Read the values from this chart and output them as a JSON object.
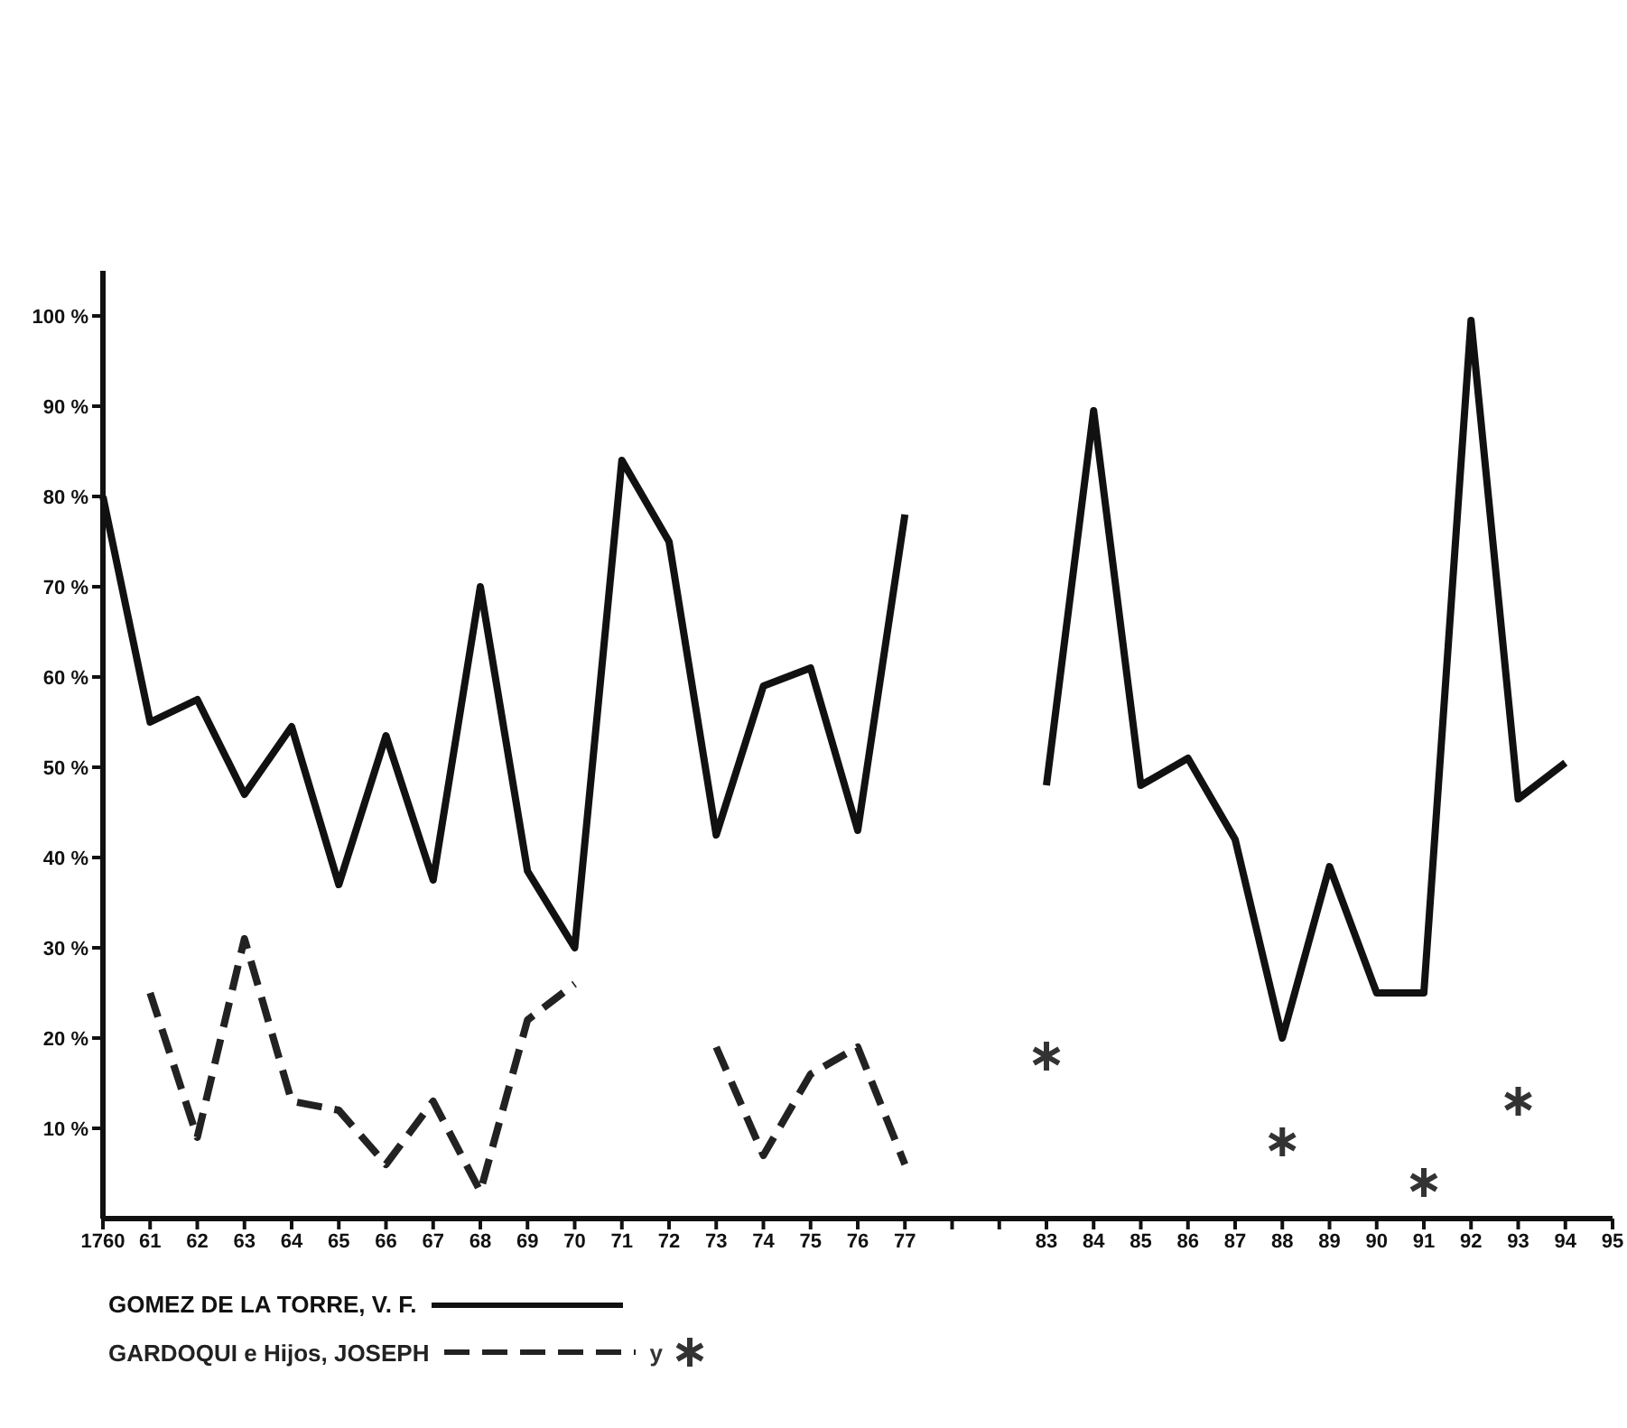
{
  "chart_data": {
    "type": "line",
    "categories": [
      "1760",
      "61",
      "62",
      "63",
      "64",
      "65",
      "66",
      "67",
      "68",
      "69",
      "70",
      "71",
      "72",
      "73",
      "74",
      "75",
      "76",
      "77",
      null,
      null,
      "83",
      "84",
      "85",
      "86",
      "87",
      "88",
      "89",
      "90",
      "91",
      "92",
      "93",
      "94",
      "95"
    ],
    "series": [
      {
        "name": "GOMEZ DE LA TORRE, V. F.",
        "color": "#111111",
        "line_style": "solid",
        "marker": "none",
        "values": [
          80,
          55,
          57.5,
          47,
          54.5,
          37,
          53.5,
          37.5,
          70,
          38.5,
          30,
          84,
          75,
          42.5,
          59,
          61,
          43,
          78,
          null,
          null,
          48,
          89.5,
          48,
          51,
          42,
          20,
          39,
          25,
          25,
          99.5,
          46.5,
          50.5,
          null
        ]
      },
      {
        "name": "GARDOQUI e Hijos, JOSEPH",
        "color": "#222222",
        "line_style": "dashed",
        "marker": "none",
        "values": [
          null,
          25,
          9,
          31,
          13,
          12,
          6,
          13,
          3,
          22,
          26,
          null,
          null,
          19,
          7,
          16,
          19,
          6,
          null,
          null,
          null,
          null,
          null,
          null,
          null,
          null,
          null,
          null,
          null,
          null,
          null,
          null,
          null
        ]
      },
      {
        "name": "y",
        "type": "scatter",
        "color": "#333333",
        "marker": "cross",
        "values": [
          null,
          null,
          null,
          null,
          null,
          null,
          null,
          null,
          null,
          null,
          null,
          null,
          null,
          null,
          null,
          null,
          null,
          null,
          null,
          null,
          18,
          null,
          null,
          null,
          null,
          8.5,
          null,
          null,
          4,
          null,
          13,
          null,
          null
        ]
      }
    ],
    "ylim": [
      0,
      105
    ],
    "yticks": [
      {
        "value": 10,
        "label": "10 %"
      },
      {
        "value": 20,
        "label": "20 %"
      },
      {
        "value": 30,
        "label": "30 %"
      },
      {
        "value": 40,
        "label": "40 %"
      },
      {
        "value": 50,
        "label": "50 %"
      },
      {
        "value": 60,
        "label": "60 %"
      },
      {
        "value": 70,
        "label": "70 %"
      },
      {
        "value": 80,
        "label": "80 %"
      },
      {
        "value": 90,
        "label": "90 %"
      },
      {
        "value": 100,
        "label": "100 %"
      }
    ],
    "grid": false,
    "legend": "bottom left"
  }
}
